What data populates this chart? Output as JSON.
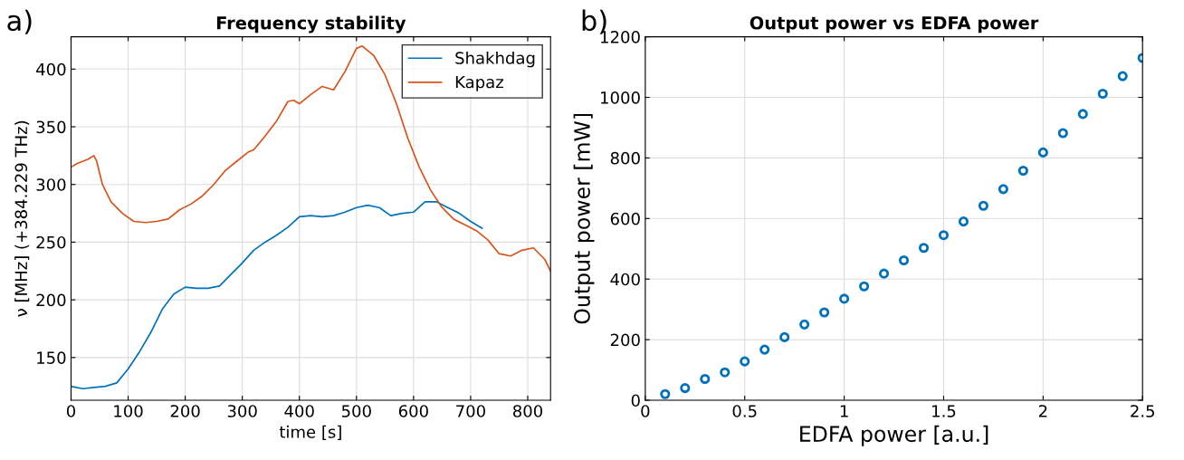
{
  "chart_data": [
    {
      "type": "line",
      "title": "Frequency stability",
      "xlabel": "time [s]",
      "ylabel": "ν [MHz] (+384.229 THz)",
      "annotations": [
        "a)"
      ],
      "xlim": [
        0,
        840
      ],
      "ylim": [
        113,
        428
      ],
      "xticks": [
        0,
        100,
        200,
        300,
        400,
        500,
        600,
        700,
        800
      ],
      "yticks": [
        150,
        200,
        250,
        300,
        350,
        400
      ],
      "grid": true,
      "legend": "top right",
      "series": [
        {
          "name": "Shakhdag",
          "color": "#0072bd",
          "x": [
            0,
            20,
            40,
            60,
            80,
            100,
            120,
            140,
            160,
            180,
            200,
            220,
            240,
            260,
            280,
            300,
            320,
            340,
            360,
            380,
            400,
            420,
            440,
            460,
            480,
            500,
            520,
            540,
            560,
            580,
            600,
            620,
            640,
            660,
            680,
            700,
            720
          ],
          "values": [
            125,
            123,
            124,
            125,
            128,
            140,
            155,
            172,
            192,
            205,
            211,
            210,
            210,
            212,
            222,
            232,
            243,
            250,
            256,
            263,
            272,
            273,
            272,
            273,
            276,
            280,
            282,
            280,
            273,
            275,
            276,
            285,
            285,
            280,
            275,
            268,
            262
          ]
        },
        {
          "name": "Kapaz",
          "color": "#d95319",
          "x": [
            0,
            10,
            30,
            40,
            45,
            55,
            70,
            90,
            110,
            130,
            150,
            170,
            190,
            210,
            230,
            250,
            270,
            290,
            310,
            320,
            340,
            360,
            380,
            390,
            400,
            420,
            440,
            460,
            480,
            500,
            510,
            530,
            550,
            570,
            590,
            610,
            630,
            650,
            670,
            690,
            710,
            730,
            750,
            770,
            790,
            810,
            830,
            840
          ],
          "values": [
            315,
            318,
            322,
            325,
            320,
            300,
            285,
            275,
            268,
            267,
            268,
            270,
            278,
            283,
            290,
            300,
            312,
            320,
            328,
            330,
            342,
            355,
            372,
            373,
            370,
            378,
            385,
            382,
            398,
            418,
            420,
            412,
            395,
            370,
            340,
            315,
            295,
            280,
            270,
            265,
            260,
            252,
            240,
            238,
            243,
            245,
            235,
            225
          ]
        }
      ]
    },
    {
      "type": "scatter",
      "title": "Output power vs EDFA power",
      "xlabel": "EDFA power [a.u.]",
      "ylabel": "Output power [mW]",
      "annotations": [
        "b)"
      ],
      "xlim": [
        0,
        2.5
      ],
      "ylim": [
        0,
        1200
      ],
      "xticks": [
        0,
        {
          "value": 0.5,
          "label": "0.5"
        },
        1,
        {
          "value": 1.5,
          "label": "1.5"
        },
        2,
        {
          "value": 2.5,
          "label": "2.5"
        }
      ],
      "yticks": [
        0,
        200,
        400,
        600,
        800,
        1000,
        1200
      ],
      "grid": true,
      "marker": "circle",
      "series": [
        {
          "color": "#0072bd",
          "x": [
            0.1,
            0.2,
            0.3,
            0.4,
            0.5,
            0.6,
            0.7,
            0.8,
            0.9,
            1.0,
            1.1,
            1.2,
            1.3,
            1.4,
            1.5,
            1.6,
            1.7,
            1.8,
            1.9,
            2.0,
            2.1,
            2.2,
            2.3,
            2.4,
            2.5
          ],
          "values": [
            20,
            40,
            70,
            92,
            128,
            167,
            208,
            250,
            290,
            335,
            376,
            418,
            462,
            503,
            545,
            590,
            642,
            697,
            758,
            818,
            882,
            945,
            1012,
            1070,
            1130
          ]
        }
      ]
    }
  ]
}
